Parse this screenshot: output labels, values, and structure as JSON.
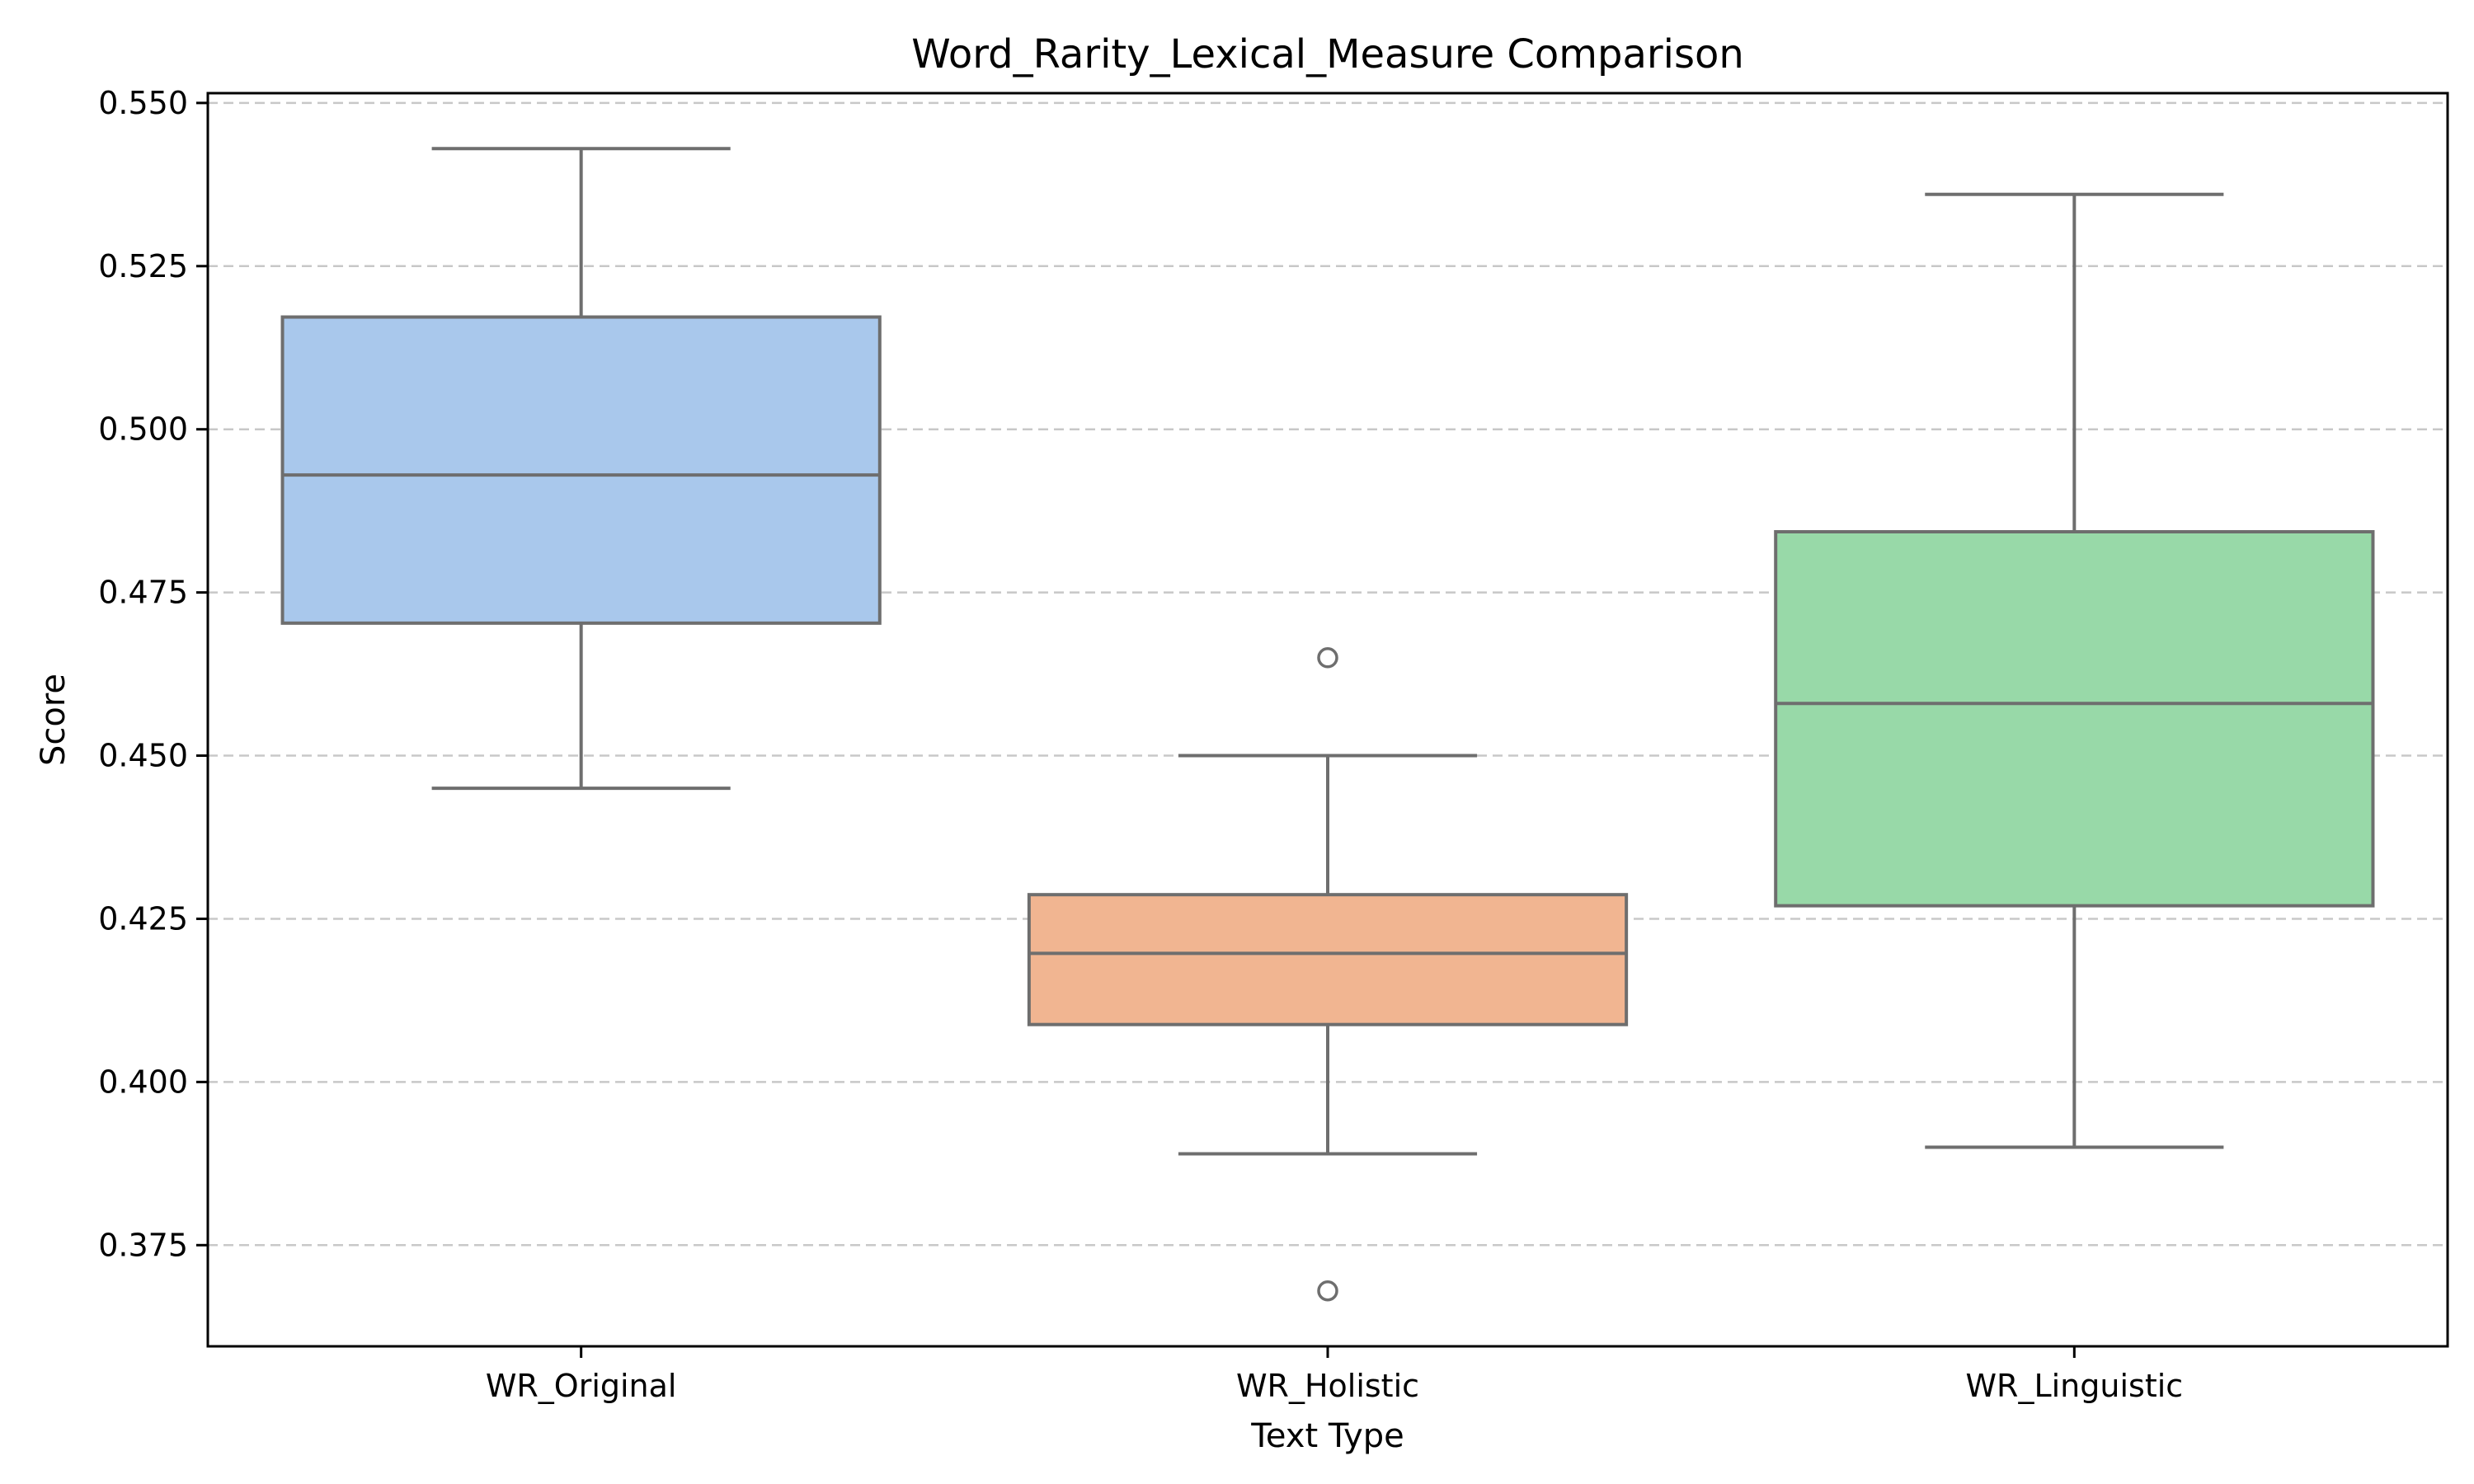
{
  "chart_data": {
    "type": "box",
    "title": "Word_Rarity_Lexical_Measure Comparison",
    "xlabel": "Text Type",
    "ylabel": "Score",
    "ylim": [
      0.3595,
      0.5515
    ],
    "yticks": [
      0.375,
      0.4,
      0.425,
      0.45,
      0.475,
      0.5,
      0.525,
      0.55
    ],
    "ytick_labels": [
      "0.375",
      "0.400",
      "0.425",
      "0.450",
      "0.475",
      "0.500",
      "0.525",
      "0.550"
    ],
    "grid": "y-dashed",
    "categories": [
      "WR_Original",
      "WR_Holistic",
      "WR_Linguistic"
    ],
    "boxes": [
      {
        "category": "WR_Original",
        "whisker_low": 0.445,
        "q1": 0.4703,
        "median": 0.493,
        "q3": 0.5172,
        "whisker_high": 0.543,
        "outliers": [],
        "color": "#a9c8ec"
      },
      {
        "category": "WR_Holistic",
        "whisker_low": 0.389,
        "q1": 0.4088,
        "median": 0.4197,
        "q3": 0.4287,
        "whisker_high": 0.45,
        "outliers": [
          0.465,
          0.368
        ],
        "color": "#f1b591"
      },
      {
        "category": "WR_Linguistic",
        "whisker_low": 0.39,
        "q1": 0.427,
        "median": 0.458,
        "q3": 0.4843,
        "whisker_high": 0.536,
        "outliers": [],
        "color": "#98d9a8"
      }
    ]
  }
}
